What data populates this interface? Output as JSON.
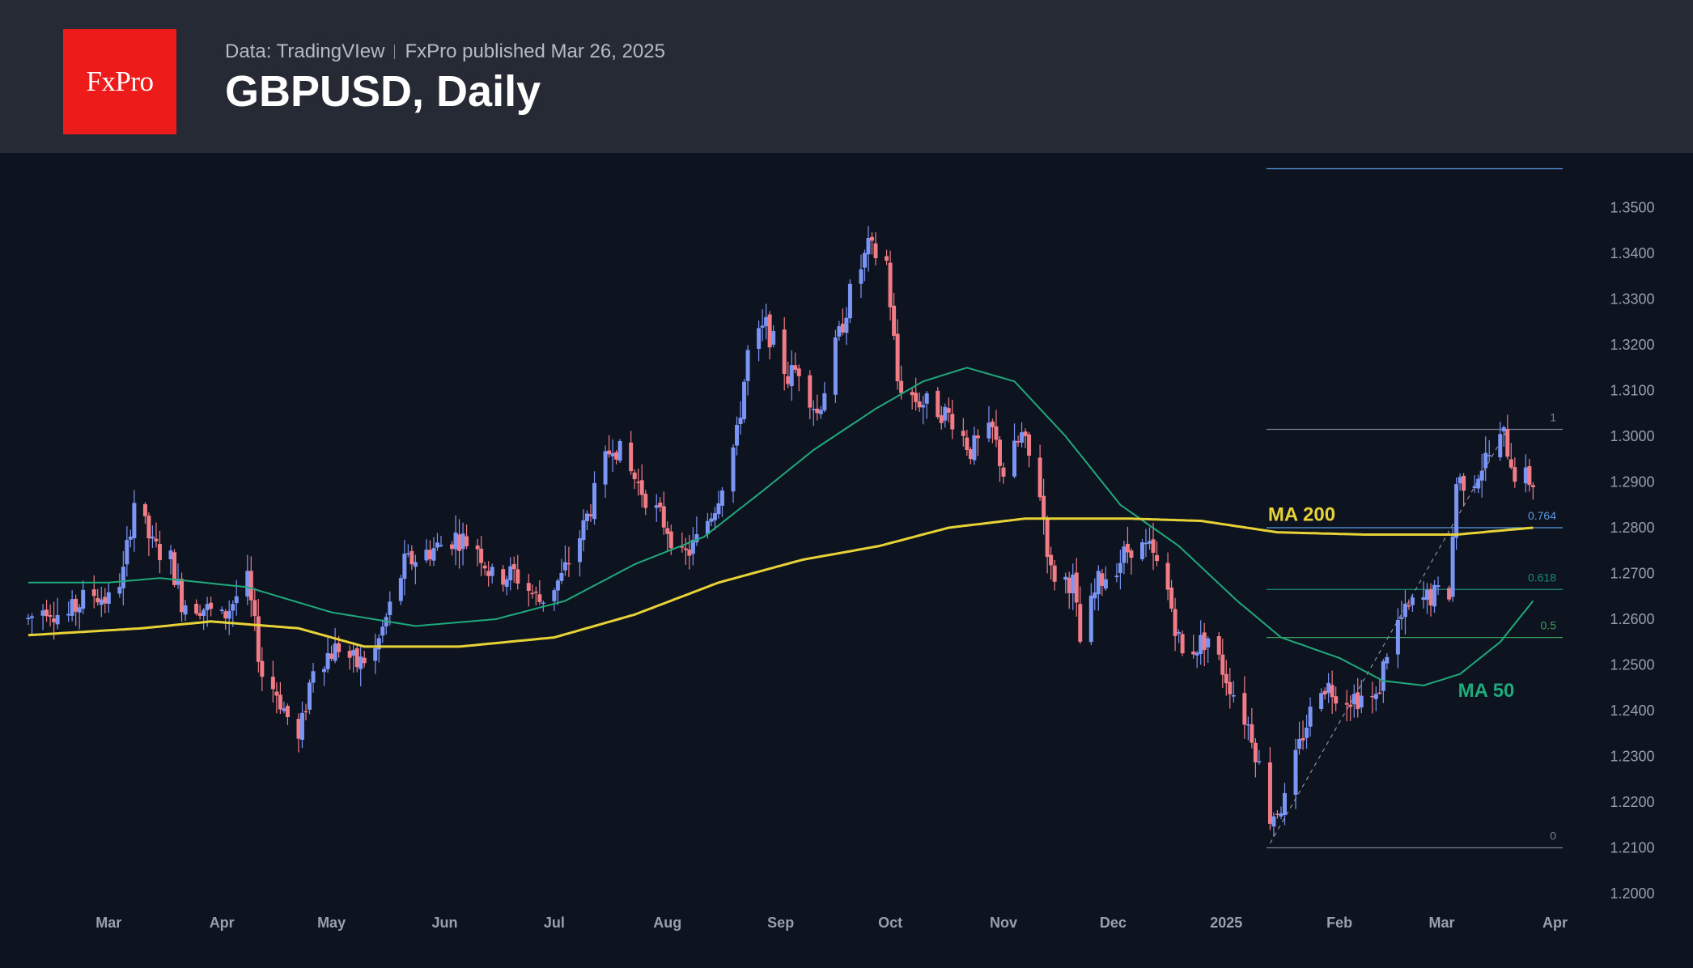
{
  "header": {
    "logo_text": "FxPro",
    "source": "Data: TradingVIew",
    "published": "FxPro published Mar 26, 2025",
    "title": "GBPUSD, Daily"
  },
  "colors": {
    "background": "#0e1320",
    "header_background": "#262a34",
    "logo_red": "#ee1b1b",
    "bull": "#7b95f5",
    "bear": "#f07c86",
    "ma50": "#1faa7a",
    "ma200": "#e8d337",
    "fib_1": "#7a7f8a",
    "fib_0764": "#5b9be0",
    "fib_0618": "#1e8a76",
    "fib_05": "#3aa160"
  },
  "chart_data": {
    "type": "candlestick",
    "title": "GBPUSD, Daily",
    "ylim": [
      1.195,
      1.362
    ],
    "y_ticks": [
      "1.2000",
      "1.2100",
      "1.2200",
      "1.2300",
      "1.2400",
      "1.2500",
      "1.2600",
      "1.2700",
      "1.2800",
      "1.2900",
      "1.3000",
      "1.3100",
      "1.3200",
      "1.3300",
      "1.3400",
      "1.3500"
    ],
    "x_ticks": [
      "Mar",
      "Apr",
      "May",
      "Jun",
      "Jul",
      "Aug",
      "Sep",
      "Oct",
      "Nov",
      "Dec",
      "2025",
      "Feb",
      "Mar",
      "Apr"
    ],
    "x_range": [
      "2024-02-08",
      "2025-04-04"
    ],
    "price_path": [
      [
        "2024-02-08",
        1.26
      ],
      [
        "2024-02-13",
        1.263
      ],
      [
        "2024-02-18",
        1.26
      ],
      [
        "2024-02-25",
        1.266
      ],
      [
        "2024-03-01",
        1.264
      ],
      [
        "2024-03-05",
        1.27
      ],
      [
        "2024-03-08",
        1.286
      ],
      [
        "2024-03-13",
        1.276
      ],
      [
        "2024-03-18",
        1.273
      ],
      [
        "2024-03-21",
        1.264
      ],
      [
        "2024-03-26",
        1.263
      ],
      [
        "2024-04-01",
        1.26
      ],
      [
        "2024-04-05",
        1.265
      ],
      [
        "2024-04-08",
        1.268
      ],
      [
        "2024-04-12",
        1.248
      ],
      [
        "2024-04-16",
        1.244
      ],
      [
        "2024-04-22",
        1.233
      ],
      [
        "2024-04-26",
        1.25
      ],
      [
        "2024-05-03",
        1.254
      ],
      [
        "2024-05-08",
        1.25
      ],
      [
        "2024-05-13",
        1.253
      ],
      [
        "2024-05-21",
        1.272
      ],
      [
        "2024-05-28",
        1.275
      ],
      [
        "2024-06-04",
        1.278
      ],
      [
        "2024-06-10",
        1.276
      ],
      [
        "2024-06-14",
        1.269
      ],
      [
        "2024-06-20",
        1.27
      ],
      [
        "2024-06-27",
        1.264
      ],
      [
        "2024-07-03",
        1.269
      ],
      [
        "2024-07-09",
        1.28
      ],
      [
        "2024-07-17",
        1.299
      ],
      [
        "2024-07-22",
        1.292
      ],
      [
        "2024-07-26",
        1.287
      ],
      [
        "2024-08-01",
        1.28
      ],
      [
        "2024-08-05",
        1.273
      ],
      [
        "2024-08-09",
        1.277
      ],
      [
        "2024-08-14",
        1.285
      ],
      [
        "2024-08-20",
        1.3
      ],
      [
        "2024-08-23",
        1.318
      ],
      [
        "2024-08-28",
        1.324
      ],
      [
        "2024-09-03",
        1.313
      ],
      [
        "2024-09-06",
        1.315
      ],
      [
        "2024-09-11",
        1.305
      ],
      [
        "2024-09-17",
        1.322
      ],
      [
        "2024-09-20",
        1.331
      ],
      [
        "2024-09-25",
        1.341
      ],
      [
        "2024-09-30",
        1.338
      ],
      [
        "2024-10-03",
        1.312
      ],
      [
        "2024-10-08",
        1.308
      ],
      [
        "2024-10-14",
        1.306
      ],
      [
        "2024-10-18",
        1.304
      ],
      [
        "2024-10-23",
        1.297
      ],
      [
        "2024-10-29",
        1.301
      ],
      [
        "2024-11-01",
        1.292
      ],
      [
        "2024-11-06",
        1.3
      ],
      [
        "2024-11-11",
        1.288
      ],
      [
        "2024-11-14",
        1.27
      ],
      [
        "2024-11-20",
        1.268
      ],
      [
        "2024-11-22",
        1.255
      ],
      [
        "2024-11-27",
        1.268
      ],
      [
        "2024-12-02",
        1.272
      ],
      [
        "2024-12-06",
        1.276
      ],
      [
        "2024-12-11",
        1.275
      ],
      [
        "2024-12-16",
        1.266
      ],
      [
        "2024-12-20",
        1.252
      ],
      [
        "2024-12-27",
        1.256
      ],
      [
        "2025-01-03",
        1.244
      ],
      [
        "2025-01-08",
        1.235
      ],
      [
        "2025-01-13",
        1.217
      ],
      [
        "2025-01-17",
        1.22
      ],
      [
        "2025-01-22",
        1.235
      ],
      [
        "2025-01-27",
        1.246
      ],
      [
        "2025-02-03",
        1.243
      ],
      [
        "2025-02-07",
        1.243
      ],
      [
        "2025-02-11",
        1.242
      ],
      [
        "2025-02-15",
        1.257
      ],
      [
        "2025-02-21",
        1.263
      ],
      [
        "2025-02-26",
        1.265
      ],
      [
        "2025-03-03",
        1.266
      ],
      [
        "2025-03-05",
        1.29
      ],
      [
        "2025-03-10",
        1.291
      ],
      [
        "2025-03-13",
        1.295
      ],
      [
        "2025-03-18",
        1.3
      ],
      [
        "2025-03-21",
        1.292
      ],
      [
        "2025-03-26",
        1.29
      ]
    ],
    "series": [
      {
        "name": "MA 50",
        "points": [
          [
            "2024-02-08",
            1.268
          ],
          [
            "2024-03-01",
            1.268
          ],
          [
            "2024-03-15",
            1.269
          ],
          [
            "2024-04-08",
            1.267
          ],
          [
            "2024-05-01",
            1.2615
          ],
          [
            "2024-05-24",
            1.2585
          ],
          [
            "2024-06-15",
            1.26
          ],
          [
            "2024-07-04",
            1.264
          ],
          [
            "2024-07-23",
            1.272
          ],
          [
            "2024-08-11",
            1.278
          ],
          [
            "2024-08-27",
            1.288
          ],
          [
            "2024-09-10",
            1.297
          ],
          [
            "2024-09-27",
            1.306
          ],
          [
            "2024-10-10",
            1.312
          ],
          [
            "2024-10-22",
            1.315
          ],
          [
            "2024-11-04",
            1.312
          ],
          [
            "2024-11-18",
            1.3
          ],
          [
            "2024-12-03",
            1.285
          ],
          [
            "2024-12-19",
            1.276
          ],
          [
            "2025-01-04",
            1.264
          ],
          [
            "2025-01-16",
            1.256
          ],
          [
            "2025-02-01",
            1.2515
          ],
          [
            "2025-02-13",
            1.2465
          ],
          [
            "2025-02-24",
            1.2455
          ],
          [
            "2025-03-06",
            1.248
          ],
          [
            "2025-03-17",
            1.255
          ],
          [
            "2025-03-26",
            1.264
          ]
        ]
      },
      {
        "name": "MA 200",
        "points": [
          [
            "2024-02-08",
            1.2565
          ],
          [
            "2024-03-10",
            1.258
          ],
          [
            "2024-03-29",
            1.2595
          ],
          [
            "2024-04-22",
            1.258
          ],
          [
            "2024-05-10",
            1.254
          ],
          [
            "2024-06-05",
            1.254
          ],
          [
            "2024-07-01",
            1.256
          ],
          [
            "2024-07-23",
            1.261
          ],
          [
            "2024-08-15",
            1.268
          ],
          [
            "2024-09-07",
            1.273
          ],
          [
            "2024-09-28",
            1.276
          ],
          [
            "2024-10-17",
            1.28
          ],
          [
            "2024-11-07",
            1.282
          ],
          [
            "2024-12-05",
            1.282
          ],
          [
            "2024-12-25",
            1.2815
          ],
          [
            "2025-01-15",
            1.279
          ],
          [
            "2025-02-08",
            1.2785
          ],
          [
            "2025-03-05",
            1.2785
          ],
          [
            "2025-03-26",
            1.28
          ]
        ]
      }
    ],
    "annotations": [
      {
        "text": "MA 200",
        "x": "2025-01-12",
        "y": 1.2815,
        "color": "#e8d337"
      },
      {
        "text": "MA 50",
        "x": "2025-03-05",
        "y": 1.243,
        "color": "#1faa7a"
      }
    ],
    "fibonacci": {
      "start": "2025-01-12",
      "end": "2025-04-04",
      "trend_line": [
        [
          "2025-01-13",
          1.211
        ],
        [
          "2025-03-19",
          1.3015
        ]
      ],
      "levels": [
        {
          "label": "1",
          "value": 1.3015,
          "color": "#7a7f8a"
        },
        {
          "label": "0.764",
          "value": 1.28,
          "color": "#5b9be0"
        },
        {
          "label": "0.618",
          "value": 1.2665,
          "color": "#1e8a76"
        },
        {
          "label": "0.5",
          "value": 1.256,
          "color": "#3aa160"
        },
        {
          "label": "0",
          "value": 1.21,
          "color": "#7a7f8a"
        }
      ],
      "top_line": 1.3585
    }
  }
}
